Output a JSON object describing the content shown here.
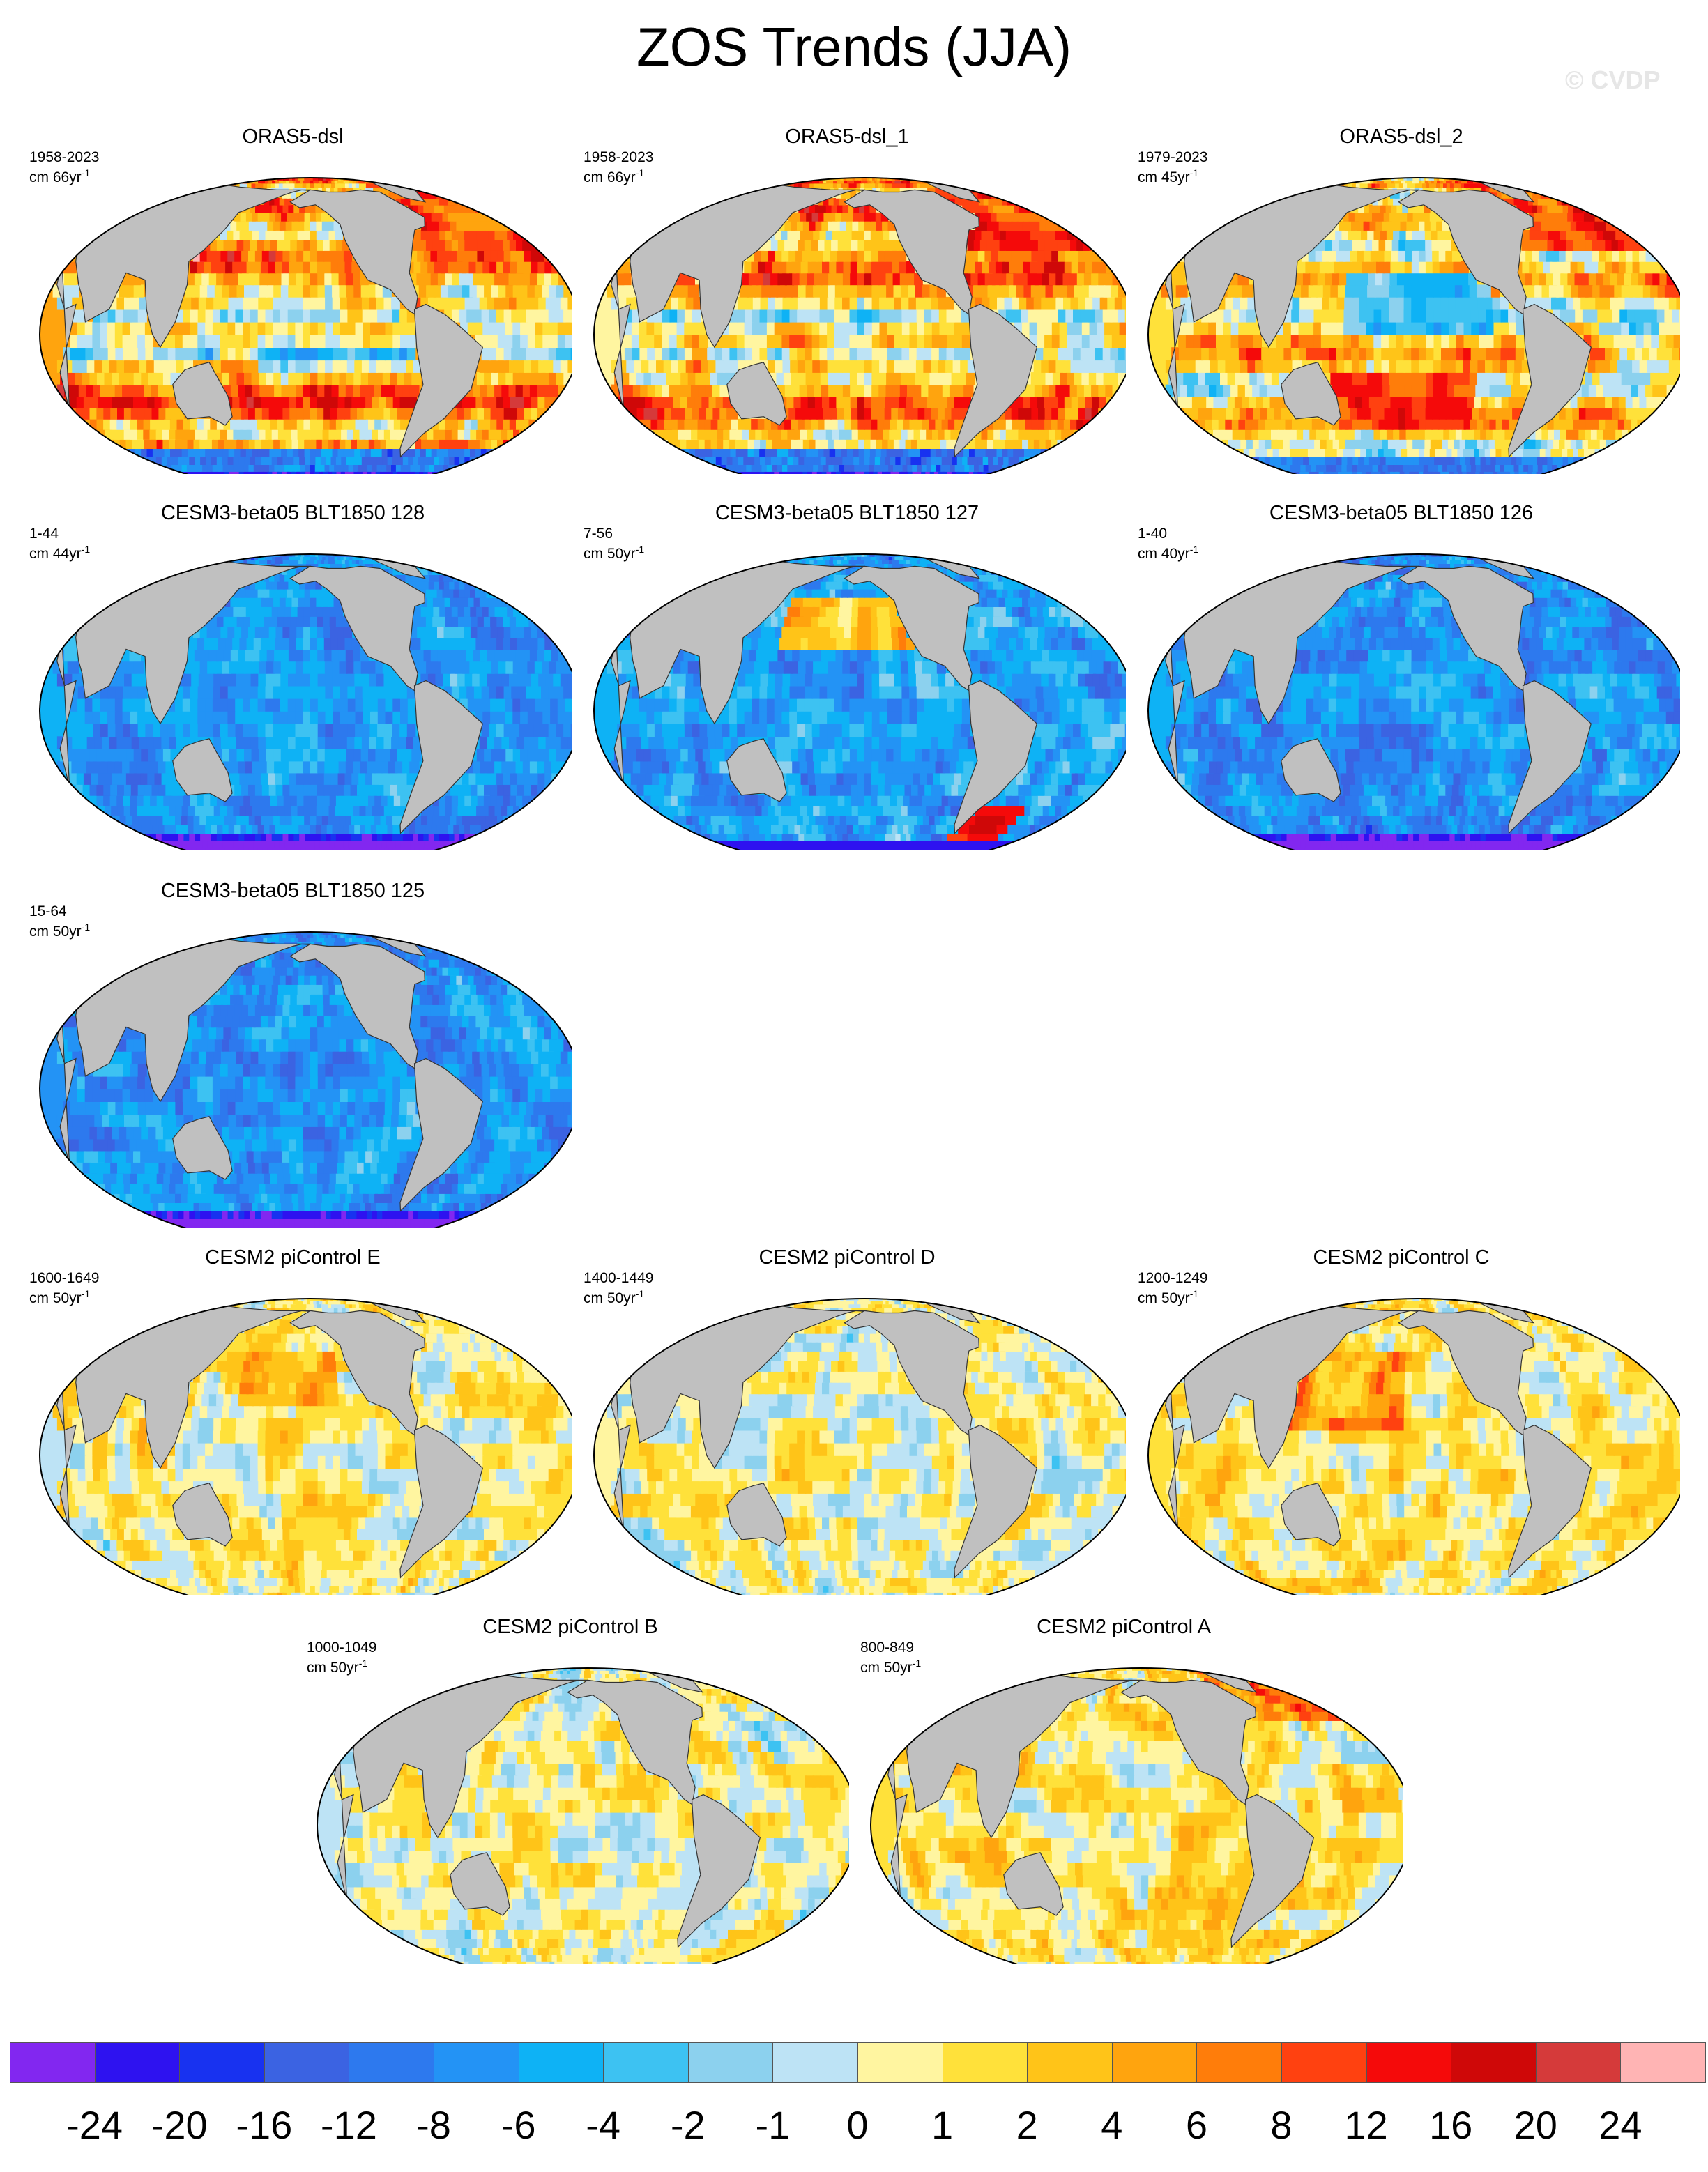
{
  "title": "ZOS Trends (JJA)",
  "watermark": "© CVDP",
  "colors": {
    "land": "#c0c0c0",
    "ocean_base": "#2f8ff0",
    "palette": [
      "#8227f0",
      "#2e12f0",
      "#1832f0",
      "#3b63e2",
      "#2d79ee",
      "#2393f5",
      "#0eb2f5",
      "#3dc2f2",
      "#8cd1ee",
      "#bde3f5",
      "#fff5a0",
      "#ffe13a",
      "#ffc418",
      "#ffa40e",
      "#ff7d0a",
      "#ff4110",
      "#f50a0a",
      "#cf0808",
      "#d53a3a",
      "#ffb4b4"
    ]
  },
  "chart_data": {
    "type": "heatmap",
    "variable": "ZOS",
    "season": "JJA",
    "projection": "robinson",
    "colorbar": {
      "levels": [
        -24,
        -20,
        -16,
        -12,
        -8,
        -6,
        -4,
        -2,
        -1,
        0,
        1,
        2,
        4,
        6,
        8,
        12,
        16,
        20,
        24
      ],
      "labels": [
        "-24",
        "-20",
        "-16",
        "-12",
        "-8",
        "-6",
        "-4",
        "-2",
        "-1",
        "0",
        "1",
        "2",
        "4",
        "6",
        "8",
        "12",
        "16",
        "20",
        "24"
      ]
    },
    "panels": [
      {
        "title": "ORAS5-dsl",
        "years": "1958-2023",
        "units": "cm 66yr",
        "pattern": "obs_a"
      },
      {
        "title": "ORAS5-dsl_1",
        "years": "1958-2023",
        "units": "cm 66yr",
        "pattern": "obs_a"
      },
      {
        "title": "ORAS5-dsl_2",
        "years": "1979-2023",
        "units": "cm 45yr",
        "pattern": "obs_b"
      },
      {
        "title": "CESM3-beta05 BLT1850 128",
        "years": "1-44",
        "units": "cm 44yr",
        "pattern": "cesm3_neg"
      },
      {
        "title": "CESM3-beta05 BLT1850 127",
        "years": "7-56",
        "units": "cm 50yr",
        "pattern": "cesm3_mix"
      },
      {
        "title": "CESM3-beta05 BLT1850 126",
        "years": "1-40",
        "units": "cm 40yr",
        "pattern": "cesm3_neg"
      },
      {
        "title": "CESM3-beta05 BLT1850 125",
        "years": "15-64",
        "units": "cm 50yr",
        "pattern": "cesm3_neg"
      },
      {
        "title": "CESM2 piControl E",
        "years": "1600-1649",
        "units": "cm 50yr",
        "pattern": "pi_e"
      },
      {
        "title": "CESM2 piControl D",
        "years": "1400-1449",
        "units": "cm 50yr",
        "pattern": "pi_d"
      },
      {
        "title": "CESM2 piControl C",
        "years": "1200-1249",
        "units": "cm 50yr",
        "pattern": "pi_c"
      },
      {
        "title": "CESM2 piControl B",
        "years": "1000-1049",
        "units": "cm 50yr",
        "pattern": "pi_b"
      },
      {
        "title": "CESM2 piControl A",
        "years": "800-849",
        "units": "cm 50yr",
        "pattern": "pi_a"
      }
    ]
  }
}
